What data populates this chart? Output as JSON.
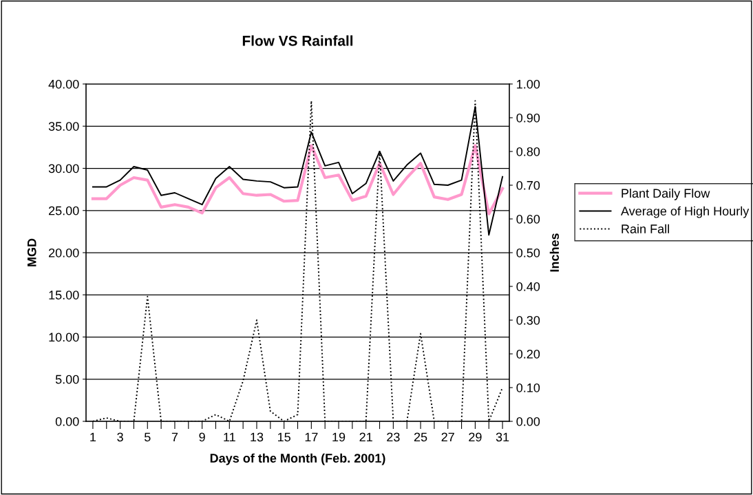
{
  "chart_data": {
    "type": "line",
    "title": "Flow VS Rainfall",
    "xlabel": "Days of the Month (Feb. 2001)",
    "ylabel": "MGD",
    "y2label": "Inches",
    "x": [
      1,
      2,
      3,
      4,
      5,
      6,
      7,
      8,
      9,
      10,
      11,
      12,
      13,
      14,
      15,
      16,
      17,
      18,
      19,
      20,
      21,
      22,
      23,
      24,
      25,
      26,
      27,
      28,
      29,
      30,
      31
    ],
    "series": [
      {
        "name": "Plant Daily Flow",
        "color": "#ff99cc",
        "line_style": "solid",
        "values": [
          26.4,
          26.4,
          28.0,
          28.9,
          28.6,
          25.4,
          25.7,
          25.4,
          24.7,
          27.7,
          28.9,
          27.0,
          26.8,
          26.9,
          26.1,
          26.2,
          32.7,
          28.9,
          29.2,
          26.2,
          26.7,
          30.6,
          26.9,
          28.9,
          30.6,
          26.6,
          26.3,
          26.9,
          32.7,
          24.6,
          27.6
        ]
      },
      {
        "name": "Average of High Hourly",
        "color": "#000000",
        "line_style": "solid",
        "values": [
          27.8,
          27.8,
          28.6,
          30.2,
          29.8,
          26.8,
          27.1,
          26.4,
          25.7,
          28.8,
          30.2,
          28.7,
          28.5,
          28.4,
          27.7,
          27.8,
          34.3,
          30.3,
          30.7,
          27.0,
          28.2,
          32.0,
          28.5,
          30.4,
          31.8,
          28.1,
          28.0,
          28.6,
          37.3,
          22.1,
          29.0
        ]
      },
      {
        "name": "Rain Fall",
        "color": "#000000",
        "line_style": "dotted",
        "axis": "y2",
        "values": [
          0.0,
          0.01,
          0.0,
          0.0,
          0.37,
          0.0,
          0.0,
          0.0,
          0.0,
          0.02,
          0.0,
          0.12,
          0.3,
          0.03,
          0.0,
          0.02,
          0.95,
          0.0,
          0.0,
          0.0,
          0.0,
          0.8,
          0.0,
          0.0,
          0.26,
          0.0,
          0.0,
          0.0,
          0.95,
          0.0,
          0.1
        ]
      }
    ],
    "xlim": [
      0.5,
      31.5
    ],
    "xticks": [
      1,
      {
        "value": 2,
        "label": null
      },
      3,
      {
        "value": 4,
        "label": null
      },
      5,
      {
        "value": 6,
        "label": null
      },
      7,
      {
        "value": 8,
        "label": null
      },
      9,
      {
        "value": 10,
        "label": null
      },
      11,
      {
        "value": 12,
        "label": null
      },
      13,
      {
        "value": 14,
        "label": null
      },
      15,
      {
        "value": 16,
        "label": null
      },
      17,
      {
        "value": 18,
        "label": null
      },
      19,
      {
        "value": 20,
        "label": null
      },
      21,
      {
        "value": 22,
        "label": null
      },
      23,
      {
        "value": 24,
        "label": null
      },
      25,
      {
        "value": 26,
        "label": null
      },
      27,
      {
        "value": 28,
        "label": null
      },
      29,
      {
        "value": 30,
        "label": null
      },
      31
    ],
    "ylim": [
      0,
      40
    ],
    "yticks": [
      {
        "value": 0,
        "label": "0.00"
      },
      {
        "value": 5,
        "label": "5.00"
      },
      {
        "value": 10,
        "label": "10.00"
      },
      {
        "value": 15,
        "label": "15.00"
      },
      {
        "value": 20,
        "label": "20.00"
      },
      {
        "value": 25,
        "label": "25.00"
      },
      {
        "value": 30,
        "label": "30.00"
      },
      {
        "value": 35,
        "label": "35.00"
      },
      {
        "value": 40,
        "label": "40.00"
      }
    ],
    "y2lim": [
      0,
      1
    ],
    "y2ticks": [
      {
        "value": 0,
        "label": "0.00"
      },
      {
        "value": 0.1,
        "label": "0.10"
      },
      {
        "value": 0.2,
        "label": "0.20"
      },
      {
        "value": 0.3,
        "label": "0.30"
      },
      {
        "value": 0.4,
        "label": "0.40"
      },
      {
        "value": 0.5,
        "label": "0.50"
      },
      {
        "value": 0.6,
        "label": "0.60"
      },
      {
        "value": 0.7,
        "label": "0.70"
      },
      {
        "value": 0.8,
        "label": "0.80"
      },
      {
        "value": 0.9,
        "label": "0.90"
      },
      {
        "value": 1,
        "label": "1.00"
      }
    ],
    "grid": "y",
    "legend": "right",
    "marker": "none"
  }
}
